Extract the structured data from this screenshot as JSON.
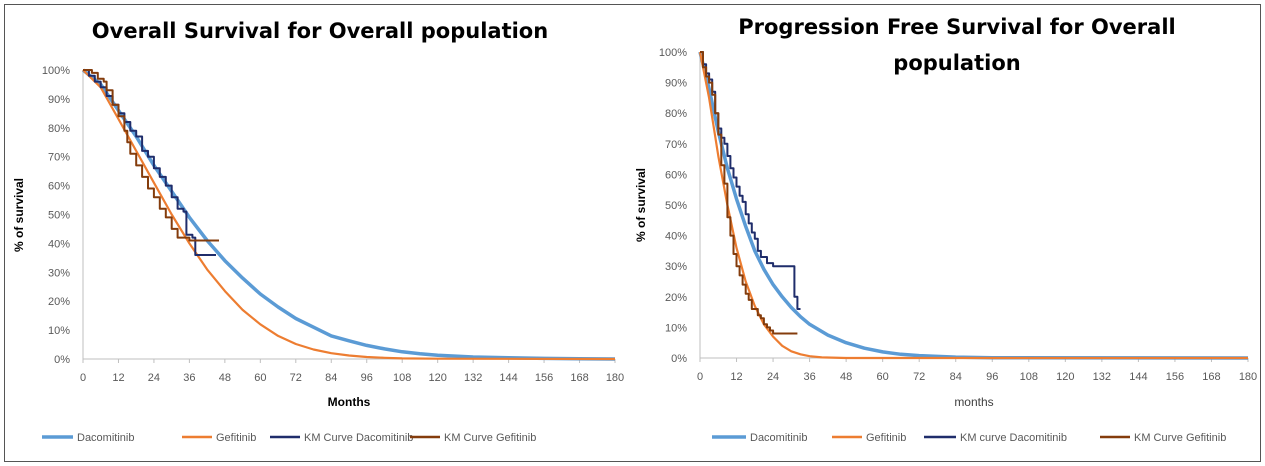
{
  "charts": [
    {
      "type": "line",
      "title": "Overall Survival for Overall population",
      "xlabel": "Months",
      "ylabel": "% of survival",
      "xlim": [
        0,
        180
      ],
      "ylim": [
        0,
        1
      ],
      "x_ticks": [
        "0",
        "12",
        "24",
        "36",
        "48",
        "60",
        "72",
        "84",
        "96",
        "108",
        "120",
        "132",
        "144",
        "156",
        "168",
        "180"
      ],
      "y_ticks": [
        "0%",
        "10%",
        "20%",
        "30%",
        "40%",
        "50%",
        "60%",
        "70%",
        "80%",
        "90%",
        "100%"
      ],
      "grid": false,
      "legend_position": "bottom",
      "series": [
        {
          "name": "Dacomitinib",
          "color": "#5b9bd5",
          "step": false,
          "points": [
            [
              0,
              1.0
            ],
            [
              6,
              0.95
            ],
            [
              12,
              0.86
            ],
            [
              18,
              0.77
            ],
            [
              24,
              0.67
            ],
            [
              30,
              0.58
            ],
            [
              36,
              0.49
            ],
            [
              42,
              0.41
            ],
            [
              48,
              0.34
            ],
            [
              54,
              0.28
            ],
            [
              60,
              0.225
            ],
            [
              66,
              0.18
            ],
            [
              72,
              0.14
            ],
            [
              78,
              0.11
            ],
            [
              84,
              0.08
            ],
            [
              90,
              0.063
            ],
            [
              96,
              0.047
            ],
            [
              102,
              0.035
            ],
            [
              108,
              0.025
            ],
            [
              114,
              0.018
            ],
            [
              120,
              0.013
            ],
            [
              132,
              0.007
            ],
            [
              144,
              0.004
            ],
            [
              156,
              0.002
            ],
            [
              168,
              0.001
            ],
            [
              180,
              0.0
            ]
          ]
        },
        {
          "name": "Gefitinib",
          "color": "#ed7d31",
          "step": false,
          "points": [
            [
              0,
              1.0
            ],
            [
              6,
              0.94
            ],
            [
              12,
              0.83
            ],
            [
              18,
              0.72
            ],
            [
              24,
              0.61
            ],
            [
              30,
              0.5
            ],
            [
              36,
              0.4
            ],
            [
              42,
              0.31
            ],
            [
              48,
              0.235
            ],
            [
              54,
              0.17
            ],
            [
              60,
              0.12
            ],
            [
              66,
              0.08
            ],
            [
              72,
              0.052
            ],
            [
              78,
              0.033
            ],
            [
              84,
              0.02
            ],
            [
              90,
              0.012
            ],
            [
              96,
              0.007
            ],
            [
              102,
              0.004
            ],
            [
              108,
              0.002
            ],
            [
              120,
              0.001
            ],
            [
              180,
              0.0
            ]
          ]
        },
        {
          "name": "KM Curve Dacomitinib",
          "color": "#1f2d6b",
          "step": true,
          "points": [
            [
              0,
              1.0
            ],
            [
              2,
              0.98
            ],
            [
              4,
              0.96
            ],
            [
              6,
              0.94
            ],
            [
              8,
              0.91
            ],
            [
              10,
              0.88
            ],
            [
              12,
              0.85
            ],
            [
              14,
              0.82
            ],
            [
              16,
              0.79
            ],
            [
              18,
              0.77
            ],
            [
              20,
              0.72
            ],
            [
              22,
              0.7
            ],
            [
              24,
              0.66
            ],
            [
              26,
              0.63
            ],
            [
              28,
              0.6
            ],
            [
              30,
              0.56
            ],
            [
              32,
              0.52
            ],
            [
              34,
              0.51
            ],
            [
              35,
              0.43
            ],
            [
              37,
              0.42
            ],
            [
              38,
              0.36
            ],
            [
              45,
              0.36
            ]
          ]
        },
        {
          "name": "KM Curve Gefitinib",
          "color": "#843c0c",
          "step": true,
          "points": [
            [
              0,
              1.0
            ],
            [
              3,
              0.99
            ],
            [
              5,
              0.97
            ],
            [
              7,
              0.96
            ],
            [
              8,
              0.93
            ],
            [
              10,
              0.88
            ],
            [
              12,
              0.84
            ],
            [
              14,
              0.79
            ],
            [
              15,
              0.75
            ],
            [
              16,
              0.71
            ],
            [
              18,
              0.67
            ],
            [
              20,
              0.63
            ],
            [
              22,
              0.59
            ],
            [
              24,
              0.56
            ],
            [
              26,
              0.52
            ],
            [
              28,
              0.49
            ],
            [
              30,
              0.45
            ],
            [
              32,
              0.42
            ],
            [
              34,
              0.42
            ],
            [
              36,
              0.41
            ],
            [
              46,
              0.41
            ]
          ]
        }
      ]
    },
    {
      "type": "line",
      "title": "Progression Free Survival for Overall population",
      "title_lines": [
        "Progression Free Survival for Overall",
        "population"
      ],
      "xlabel": "months",
      "ylabel": "% of survival",
      "xlim": [
        0,
        180
      ],
      "ylim": [
        0,
        1
      ],
      "x_ticks": [
        "0",
        "12",
        "24",
        "36",
        "48",
        "60",
        "72",
        "84",
        "96",
        "108",
        "120",
        "132",
        "144",
        "156",
        "168",
        "180"
      ],
      "y_ticks": [
        "0%",
        "10%",
        "20%",
        "30%",
        "40%",
        "50%",
        "60%",
        "70%",
        "80%",
        "90%",
        "100%"
      ],
      "grid": false,
      "legend_position": "bottom",
      "series": [
        {
          "name": "Dacomitinib",
          "color": "#5b9bd5",
          "step": false,
          "points": [
            [
              0,
              1.0
            ],
            [
              3,
              0.88
            ],
            [
              6,
              0.74
            ],
            [
              9,
              0.62
            ],
            [
              12,
              0.52
            ],
            [
              15,
              0.43
            ],
            [
              18,
              0.35
            ],
            [
              21,
              0.29
            ],
            [
              24,
              0.24
            ],
            [
              27,
              0.2
            ],
            [
              30,
              0.165
            ],
            [
              33,
              0.135
            ],
            [
              36,
              0.11
            ],
            [
              42,
              0.075
            ],
            [
              48,
              0.05
            ],
            [
              54,
              0.032
            ],
            [
              60,
              0.02
            ],
            [
              66,
              0.012
            ],
            [
              72,
              0.008
            ],
            [
              84,
              0.003
            ],
            [
              96,
              0.001
            ],
            [
              180,
              0.0
            ]
          ]
        },
        {
          "name": "Gefitinib",
          "color": "#ed7d31",
          "step": false,
          "points": [
            [
              0,
              1.0
            ],
            [
              3,
              0.85
            ],
            [
              6,
              0.66
            ],
            [
              9,
              0.5
            ],
            [
              12,
              0.36
            ],
            [
              15,
              0.25
            ],
            [
              18,
              0.17
            ],
            [
              21,
              0.11
            ],
            [
              24,
              0.07
            ],
            [
              27,
              0.04
            ],
            [
              30,
              0.022
            ],
            [
              33,
              0.012
            ],
            [
              36,
              0.006
            ],
            [
              40,
              0.002
            ],
            [
              48,
              0.0
            ],
            [
              180,
              0.0
            ]
          ]
        },
        {
          "name": "KM curve Dacomitinib",
          "color": "#1f2d6b",
          "step": true,
          "points": [
            [
              0,
              1.0
            ],
            [
              1,
              0.96
            ],
            [
              2,
              0.93
            ],
            [
              3,
              0.91
            ],
            [
              4,
              0.87
            ],
            [
              5,
              0.8
            ],
            [
              6,
              0.75
            ],
            [
              7,
              0.72
            ],
            [
              8,
              0.7
            ],
            [
              9,
              0.66
            ],
            [
              10,
              0.62
            ],
            [
              11,
              0.59
            ],
            [
              12,
              0.56
            ],
            [
              13,
              0.53
            ],
            [
              14,
              0.51
            ],
            [
              15,
              0.47
            ],
            [
              16,
              0.44
            ],
            [
              17,
              0.41
            ],
            [
              18,
              0.39
            ],
            [
              19,
              0.35
            ],
            [
              20,
              0.33
            ],
            [
              22,
              0.31
            ],
            [
              24,
              0.3
            ],
            [
              30,
              0.3
            ],
            [
              31,
              0.2
            ],
            [
              32,
              0.16
            ],
            [
              33,
              0.16
            ]
          ]
        },
        {
          "name": "KM Curve Gefitinib",
          "color": "#843c0c",
          "step": true,
          "points": [
            [
              0,
              1.0
            ],
            [
              1,
              0.95
            ],
            [
              2,
              0.92
            ],
            [
              3,
              0.9
            ],
            [
              4,
              0.86
            ],
            [
              5,
              0.8
            ],
            [
              6,
              0.73
            ],
            [
              7,
              0.63
            ],
            [
              8,
              0.57
            ],
            [
              9,
              0.46
            ],
            [
              10,
              0.4
            ],
            [
              11,
              0.34
            ],
            [
              12,
              0.3
            ],
            [
              13,
              0.27
            ],
            [
              14,
              0.24
            ],
            [
              15,
              0.21
            ],
            [
              16,
              0.19
            ],
            [
              17,
              0.16
            ],
            [
              18,
              0.16
            ],
            [
              19,
              0.14
            ],
            [
              20,
              0.13
            ],
            [
              21,
              0.11
            ],
            [
              22,
              0.1
            ],
            [
              23,
              0.09
            ],
            [
              24,
              0.08
            ],
            [
              32,
              0.08
            ]
          ]
        }
      ]
    }
  ]
}
